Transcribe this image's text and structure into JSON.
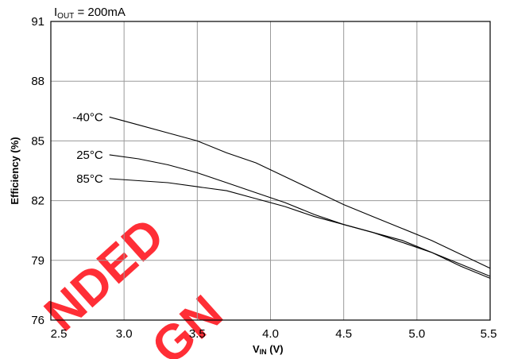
{
  "chart_data": {
    "type": "line",
    "title": {
      "main": "I",
      "sub": "OUT",
      "rest": " = 200mA"
    },
    "xlabel": {
      "main": "V",
      "sub": "IN",
      "rest": " (V)"
    },
    "ylabel": "Efficiency (%)",
    "xlim": [
      2.5,
      5.5
    ],
    "ylim": [
      76,
      91
    ],
    "xticks": [
      "2.5",
      "3.0",
      "3.5",
      "4.0",
      "4.5",
      "5.0",
      "5.5"
    ],
    "yticks": [
      "76",
      "79",
      "82",
      "85",
      "88",
      "91"
    ],
    "grid": true,
    "series": [
      {
        "name": "-40°C",
        "x": [
          2.9,
          3.1,
          3.3,
          3.5,
          3.7,
          3.9,
          4.1,
          4.3,
          4.5,
          4.7,
          4.9,
          5.1,
          5.3,
          5.5
        ],
        "y": [
          86.2,
          85.8,
          85.4,
          85.0,
          84.4,
          83.9,
          83.2,
          82.5,
          81.8,
          81.2,
          80.6,
          80.0,
          79.3,
          78.6
        ]
      },
      {
        "name": "25°C",
        "x": [
          2.9,
          3.1,
          3.3,
          3.5,
          3.7,
          3.9,
          4.1,
          4.3,
          4.5,
          4.7,
          4.9,
          5.1,
          5.3,
          5.5
        ],
        "y": [
          84.3,
          84.1,
          83.8,
          83.4,
          82.9,
          82.4,
          81.9,
          81.3,
          80.8,
          80.4,
          79.9,
          79.4,
          78.8,
          78.2
        ]
      },
      {
        "name": "85°C",
        "x": [
          2.9,
          3.1,
          3.3,
          3.5,
          3.7,
          3.9,
          4.1,
          4.3,
          4.5,
          4.7,
          4.9,
          5.1,
          5.3,
          5.5
        ],
        "y": [
          83.1,
          83.0,
          82.9,
          82.7,
          82.5,
          82.1,
          81.7,
          81.2,
          80.8,
          80.4,
          80.0,
          79.4,
          78.7,
          78.1
        ]
      }
    ]
  },
  "watermark": {
    "lines": [
      "NDED",
      "GN"
    ],
    "color": "#ff0a14"
  }
}
